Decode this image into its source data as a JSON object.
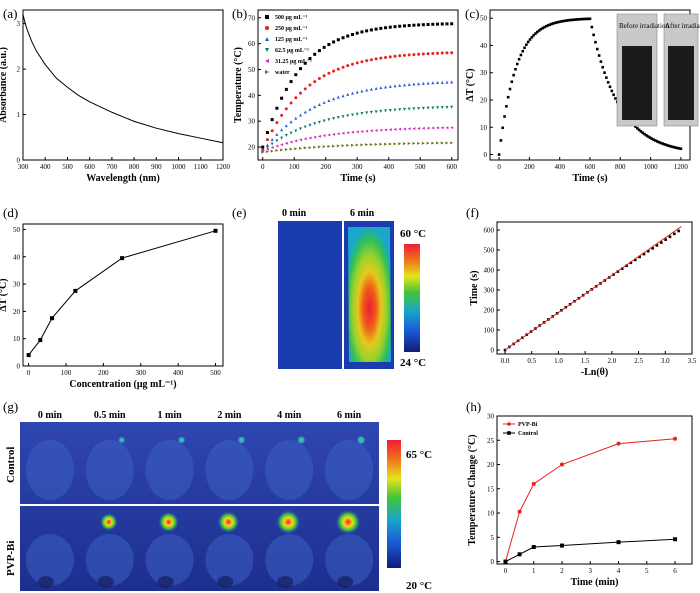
{
  "panel_labels": [
    "(a)",
    "(b)",
    "(c)",
    "(d)",
    "(e)",
    "(f)",
    "(g)",
    "(h)"
  ],
  "chart_data": [
    {
      "id": "a",
      "type": "line",
      "xlabel": "Wavelength (nm)",
      "ylabel": "Absorbance (a.u.)",
      "xlim": [
        300,
        1200
      ],
      "ylim": [
        0,
        3.3
      ],
      "xticks": [
        300,
        400,
        500,
        600,
        700,
        800,
        900,
        1000,
        1100,
        1200
      ],
      "yticks": [
        0,
        1,
        2,
        3
      ],
      "series": [
        {
          "x": [
            300,
            310,
            320,
            340,
            360,
            380,
            400,
            450,
            500,
            550,
            600,
            700,
            800,
            900,
            1000,
            1100,
            1200
          ],
          "y": [
            3.2,
            3.0,
            2.85,
            2.6,
            2.4,
            2.25,
            2.1,
            1.8,
            1.6,
            1.42,
            1.28,
            1.05,
            0.85,
            0.7,
            0.58,
            0.48,
            0.38
          ]
        }
      ]
    },
    {
      "id": "b",
      "type": "scatter",
      "xlabel": "Time (s)",
      "ylabel": "Temperature (°C)",
      "xlim": [
        -15,
        620
      ],
      "ylim": [
        15,
        73
      ],
      "xticks": [
        0,
        100,
        200,
        300,
        400,
        500,
        600
      ],
      "yticks": [
        20,
        30,
        40,
        50,
        60,
        70
      ],
      "series": [
        {
          "name": "500 μg mL⁻¹",
          "color": "#000000",
          "marker": "square",
          "T0": 20,
          "Tmax": 68,
          "tau": 120
        },
        {
          "name": "250 μg mL⁻¹",
          "color": "#e8221b",
          "marker": "circle",
          "T0": 19,
          "Tmax": 57,
          "tau": 140
        },
        {
          "name": "125 μg mL⁻¹",
          "color": "#2a5ad6",
          "marker": "triangle-up",
          "T0": 18.5,
          "Tmax": 46,
          "tau": 170
        },
        {
          "name": "62.5 μg mL⁻¹",
          "color": "#0d7c6e",
          "marker": "triangle-down",
          "T0": 18.5,
          "Tmax": 36,
          "tau": 180
        },
        {
          "name": "31.25 μg mL⁻¹",
          "color": "#d02fc4",
          "marker": "triangle-left",
          "T0": 18.5,
          "Tmax": 28,
          "tau": 200
        },
        {
          "name": "water",
          "color": "#6f6f16",
          "marker": "triangle-right",
          "T0": 18,
          "Tmax": 22,
          "tau": 250
        }
      ]
    },
    {
      "id": "c",
      "type": "scatter",
      "xlabel": "Time (s)",
      "ylabel": "ΔT (°C)",
      "xlim": [
        -60,
        1260
      ],
      "ylim": [
        -2,
        53
      ],
      "xticks": [
        0,
        200,
        400,
        600,
        800,
        1000,
        1200
      ],
      "yticks": [
        0,
        10,
        20,
        30,
        40,
        50
      ],
      "heating": {
        "t_end": 600,
        "dTmax": 50,
        "tau": 110
      },
      "cooling": {
        "t_start": 600,
        "t_end": 1200,
        "tau": 190
      },
      "inset_labels": [
        "Before irradiation",
        "After irradiation"
      ]
    },
    {
      "id": "d",
      "type": "line",
      "xlabel": "Concentration (μg mL⁻¹)",
      "ylabel": "ΔT (°C)",
      "xlim": [
        -15,
        520
      ],
      "ylim": [
        0,
        52
      ],
      "xticks": [
        0,
        100,
        200,
        300,
        400,
        500
      ],
      "yticks": [
        0,
        10,
        20,
        30,
        40,
        50
      ],
      "series": [
        {
          "x": [
            0,
            31.25,
            62.5,
            125,
            250,
            500
          ],
          "y": [
            4,
            9.5,
            17.5,
            27.5,
            39.5,
            49.5
          ]
        }
      ]
    },
    {
      "id": "e",
      "type": "heatmap",
      "labels": [
        "0 min",
        "6 min"
      ],
      "scale_max": "60 °C",
      "scale_min": "24 °C"
    },
    {
      "id": "f",
      "type": "scatter",
      "xlabel": "-Ln(θ)",
      "ylabel": "Time (s)",
      "xlim": [
        -0.15,
        3.5
      ],
      "ylim": [
        -20,
        640
      ],
      "xticks": [
        0.0,
        0.5,
        1.0,
        1.5,
        2.0,
        2.5,
        3.0,
        3.5
      ],
      "yticks": [
        0,
        100,
        200,
        300,
        400,
        500,
        600
      ],
      "fit": {
        "slope": 187,
        "intercept": 0
      },
      "series": [
        {
          "xmax": 3.25,
          "ymax": 595
        }
      ]
    },
    {
      "id": "g",
      "type": "heatmap",
      "time_labels": [
        "0 min",
        "0.5 min",
        "1 min",
        "2 min",
        "4 min",
        "6 min"
      ],
      "rows": [
        "Control",
        "PVP-Bi"
      ],
      "scale_max": "65 °C",
      "scale_min": "20 °C",
      "spot_intensity_control": [
        0.0,
        0.15,
        0.2,
        0.25,
        0.3,
        0.35
      ],
      "spot_intensity_pvp": [
        0.0,
        0.55,
        0.7,
        0.78,
        0.9,
        0.95
      ]
    },
    {
      "id": "h",
      "type": "line",
      "xlabel": "Time (min)",
      "ylabel": "Temperature Change (°C)",
      "xlim": [
        -0.3,
        6.6
      ],
      "ylim": [
        -0.5,
        30
      ],
      "xticks": [
        0,
        1,
        2,
        3,
        4,
        5,
        6
      ],
      "yticks": [
        0,
        5,
        10,
        15,
        20,
        25,
        30
      ],
      "series": [
        {
          "name": "PVP-Bi",
          "color": "#e8221b",
          "x": [
            0,
            0.5,
            1,
            2,
            4,
            6
          ],
          "y": [
            0,
            10.3,
            16,
            20,
            24.3,
            25.3
          ]
        },
        {
          "name": "Control",
          "color": "#000000",
          "x": [
            0,
            0.5,
            1,
            2,
            4,
            6
          ],
          "y": [
            0,
            1.5,
            3,
            3.3,
            4,
            4.6
          ]
        }
      ]
    }
  ]
}
